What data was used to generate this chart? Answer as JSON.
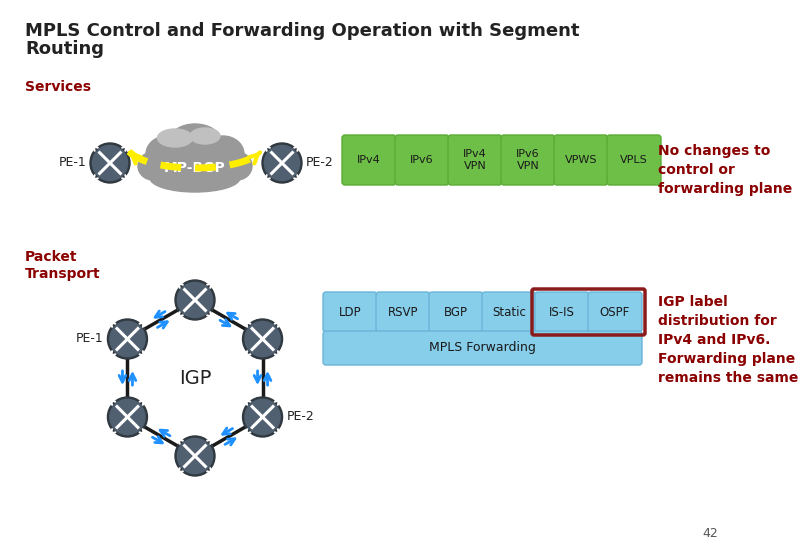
{
  "title_line1": "MPLS Control and Forwarding Operation with Segment",
  "title_line2": "Routing",
  "title_fontsize": 13,
  "title_color": "#222222",
  "background_color": "#ffffff",
  "services_label": "Services",
  "services_color": "#8b0000",
  "mpbgp_label": "MP-BGP",
  "pe1_label": "PE-1",
  "pe2_label": "PE-2",
  "green_boxes": [
    "IPv4",
    "IPv6",
    "IPv4\nVPN",
    "IPv6\nVPN",
    "VPWS",
    "VPLS"
  ],
  "green_color": "#6dbf47",
  "green_dark": "#5aab35",
  "no_changes_text": "No changes to\ncontrol or\nforwarding plane",
  "no_changes_color": "#8b0000",
  "packet_transport_label": "Packet\nTransport",
  "packet_transport_color": "#8b0000",
  "igp_label": "IGP",
  "pe1_bottom_label": "PE-1",
  "pe2_bottom_label": "PE-2",
  "blue_boxes_top": [
    "LDP",
    "RSVP",
    "BGP",
    "Static",
    "IS-IS",
    "OSPF"
  ],
  "blue_color": "#87ceeb",
  "highlighted_boxes": [
    "IS-IS",
    "OSPF"
  ],
  "highlight_border_color": "#8b1a1a",
  "mpls_forwarding_label": "MPLS Forwarding",
  "mpls_forwarding_color": "#87ceeb",
  "igp_label_text": "IGP label\ndistribution for\nIPv4 and IPv6.\nForwarding plane\nremains the same",
  "igp_label_color": "#8b0000",
  "page_number": "42",
  "cloud_color": "#999999",
  "cloud_highlight": "#c0c0c0",
  "router_color": "#506070",
  "router_edge": "#303840",
  "arrow_color": "#1e90ff",
  "yellow_arrow_color": "#ffee00",
  "line_color": "#1a1a1a"
}
